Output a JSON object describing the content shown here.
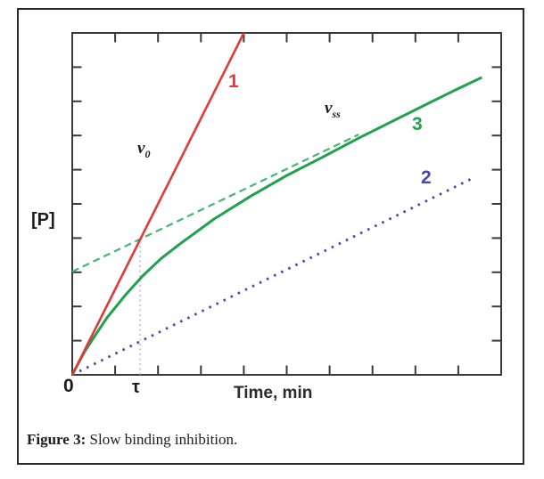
{
  "figure": {
    "caption_bold": "Figure 3:",
    "caption_rest": " Slow binding inhibition."
  },
  "plot": {
    "y_axis_label": "[P]",
    "x_axis_label": "Time, min",
    "origin_label": "0",
    "tau_label": "τ",
    "annotations": {
      "v0_base": "v",
      "v0_sub": "0",
      "vss_base": "v",
      "vss_sub": "ss",
      "line1_label": "1",
      "line2_label": "2",
      "line3_label": "3"
    },
    "colors": {
      "red": "#e03b3b",
      "green": "#1fa24e",
      "green_dashed": "#43b871",
      "blue": "#4747ae",
      "gray_dotted": "#ababab",
      "axis": "#3a3a3a",
      "text": "#1c1c1c"
    }
  },
  "chart_data": {
    "type": "line",
    "title": "Slow binding inhibition",
    "xlabel": "Time, min",
    "ylabel": "[P]",
    "xlim": [
      0,
      10
    ],
    "ylim": [
      0,
      10
    ],
    "grid": false,
    "legend": "none (curves numbered 1, 2, 3 directly on plot)",
    "axis_ticks": "unlabeled inward ticks every 1 unit on all four sides",
    "annotations": [
      "v0: tangent label on line 1 (initial uninhibited velocity)",
      "vss: label on steady-state portion of curve 3 (final velocity)",
      "τ: x-axis marker where v0 line meets vss asymptote (vertical gray dotted line)"
    ],
    "tau": {
      "x": 1.58,
      "y_top": 3.97
    },
    "series": [
      {
        "id": "control",
        "name": "1 — uninhibited control, slope v0",
        "style": "solid red line",
        "x": [
          0,
          4.0
        ],
        "y": [
          0,
          10
        ]
      },
      {
        "id": "inhibited",
        "name": "2 — inhibited at steady-state rate from t=0",
        "style": "dotted blue line",
        "x": [
          0,
          9.35
        ],
        "y": [
          0,
          5.76
        ]
      },
      {
        "id": "slow_binding",
        "name": "3 — slow-binding progress curve [P]=vss·t+((v0−vss)/k)(1−e^(−kt))",
        "style": "solid green curve",
        "x": [
          0,
          0.29,
          0.5,
          0.81,
          1.23,
          1.64,
          2.07,
          2.48,
          3.31,
          4.14,
          4.97,
          5.81,
          6.64,
          7.47,
          8.3,
          8.93,
          9.55
        ],
        "y": [
          0,
          0.68,
          1.09,
          1.67,
          2.32,
          2.89,
          3.4,
          3.8,
          4.56,
          5.21,
          5.81,
          6.35,
          6.9,
          7.42,
          7.94,
          8.33,
          8.7
        ]
      },
      {
        "id": "asymptote",
        "name": "vss steady-state asymptote (extrapolated tangent)",
        "style": "dashed green line",
        "x": [
          0,
          6.68
        ],
        "y": [
          3.02,
          7.03
        ]
      }
    ]
  }
}
